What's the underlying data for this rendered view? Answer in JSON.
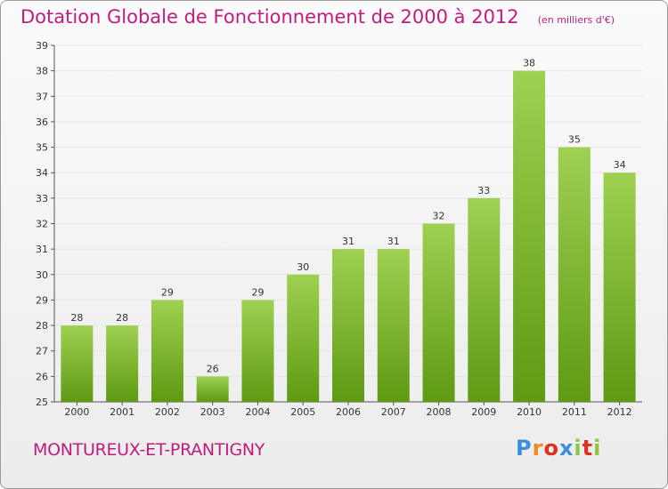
{
  "header": {
    "title": "Dotation Globale de Fonctionnement de 2000 à 2012",
    "subtitle": "(en milliers d'€)"
  },
  "commune": "MONTUREUX-ET-PRANTIGNY",
  "logo": [
    "P",
    "r",
    "o",
    "x",
    "i",
    "t",
    "i"
  ],
  "colors": {
    "accent": "#c01c7e",
    "bar_top": "#9fd052",
    "bar_bottom": "#5e9a12",
    "grid": "#e6e6e6"
  },
  "chart_data": {
    "type": "bar",
    "categories": [
      "2000",
      "2001",
      "2002",
      "2003",
      "2004",
      "2005",
      "2006",
      "2007",
      "2008",
      "2009",
      "2010",
      "2011",
      "2012"
    ],
    "values": [
      28,
      28,
      29,
      26,
      29,
      30,
      31,
      31,
      32,
      33,
      38,
      35,
      34
    ],
    "y_ticks": [
      "25",
      "26",
      "27",
      "28",
      "29",
      "30",
      "31",
      "32",
      "33",
      "34",
      "35",
      "36",
      "37",
      "38",
      "39"
    ],
    "ylim": [
      25,
      39
    ],
    "grid": true,
    "xlabel": "",
    "ylabel": ""
  }
}
